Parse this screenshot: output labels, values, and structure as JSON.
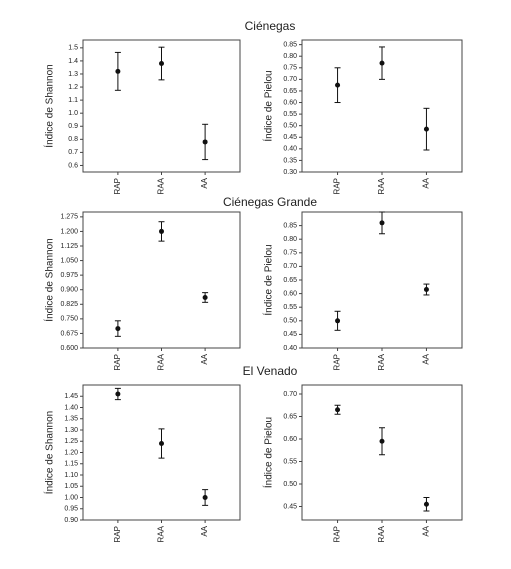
{
  "sections": [
    "Ciénegas",
    "Ciénegas Grande",
    "El Venado"
  ],
  "chart_data": [
    {
      "type": "errorbar",
      "ylabel": "Índice de Shannon",
      "categories": [
        "RAP",
        "RAA",
        "AA"
      ],
      "values": [
        1.32,
        1.38,
        0.78
      ],
      "errors": [
        0.145,
        0.125,
        0.135
      ],
      "color": "#111111",
      "ylim": [
        0.55,
        1.56
      ],
      "yticks": [
        {
          "value": 0.6,
          "label": "0.6"
        },
        0.7,
        0.8,
        0.9,
        {
          "value": 1,
          "label": "1.0"
        },
        1.1,
        1.2,
        1.3,
        1.4,
        1.5
      ]
    },
    {
      "type": "errorbar",
      "ylabel": "Índice de Pielou",
      "categories": [
        "RAP",
        "RAA",
        "AA"
      ],
      "values": [
        0.675,
        0.77,
        0.485
      ],
      "errors": [
        0.075,
        0.07,
        0.09
      ],
      "color": "#111111",
      "ylim": [
        0.3,
        0.87
      ],
      "yticks": [
        {
          "value": 0.3,
          "label": "0.30"
        },
        0.35,
        {
          "value": 0.4,
          "label": "0.40"
        },
        0.45,
        {
          "value": 0.5,
          "label": "0.50"
        },
        0.55,
        {
          "value": 0.6,
          "label": "0.60"
        },
        0.65,
        {
          "value": 0.7,
          "label": "0.70"
        },
        0.75,
        {
          "value": 0.8,
          "label": "0.80"
        },
        0.85
      ]
    },
    {
      "type": "errorbar",
      "ylabel": "Índice de Shannon",
      "categories": [
        "RAP",
        "RAA",
        "AA"
      ],
      "values": [
        0.7,
        1.2,
        0.86
      ],
      "errors": [
        0.04,
        0.05,
        0.025
      ],
      "color": "#111111",
      "ylim": [
        0.6,
        1.3
      ],
      "yticks": [
        {
          "value": 0.6,
          "label": "0.600"
        },
        0.675,
        {
          "value": 0.75,
          "label": "0.750"
        },
        0.825,
        {
          "value": 0.9,
          "label": "0.900"
        },
        0.975,
        {
          "value": 1.05,
          "label": "1.050"
        },
        1.125,
        {
          "value": 1.2,
          "label": "1.200"
        },
        1.275
      ]
    },
    {
      "type": "errorbar",
      "ylabel": "Índice de Pielou",
      "categories": [
        "RAP",
        "RAA",
        "AA"
      ],
      "values": [
        0.5,
        0.86,
        0.615
      ],
      "errors": [
        0.035,
        0.04,
        0.02
      ],
      "color": "#111111",
      "ylim": [
        0.4,
        0.9
      ],
      "yticks": [
        {
          "value": 0.4,
          "label": "0.40"
        },
        0.45,
        {
          "value": 0.5,
          "label": "0.50"
        },
        0.55,
        {
          "value": 0.6,
          "label": "0.60"
        },
        0.65,
        {
          "value": 0.7,
          "label": "0.70"
        },
        0.75,
        {
          "value": 0.8,
          "label": "0.80"
        },
        0.85
      ]
    },
    {
      "type": "errorbar",
      "ylabel": "Índice de Shannon",
      "categories": [
        "RAP",
        "RAA",
        "AA"
      ],
      "values": [
        1.46,
        1.24,
        1.0
      ],
      "errors": [
        0.025,
        0.065,
        0.035
      ],
      "color": "#111111",
      "ylim": [
        0.9,
        1.5
      ],
      "yticks": [
        {
          "value": 0.9,
          "label": "0.90"
        },
        0.95,
        {
          "value": 1,
          "label": "1.00"
        },
        1.05,
        {
          "value": 1.1,
          "label": "1.10"
        },
        1.15,
        {
          "value": 1.2,
          "label": "1.20"
        },
        1.25,
        {
          "value": 1.3,
          "label": "1.30"
        },
        1.35,
        {
          "value": 1.4,
          "label": "1.40"
        },
        1.45
      ]
    },
    {
      "type": "errorbar",
      "ylabel": "Índice de Pielou",
      "categories": [
        "RAP",
        "RAA",
        "AA"
      ],
      "values": [
        0.665,
        0.595,
        0.455
      ],
      "errors": [
        0.01,
        0.03,
        0.015
      ],
      "color": "#111111",
      "ylim": [
        0.42,
        0.72
      ],
      "yticks": [
        0.45,
        {
          "value": 0.5,
          "label": "0.50"
        },
        0.55,
        {
          "value": 0.6,
          "label": "0.60"
        },
        0.65,
        {
          "value": 0.7,
          "label": "0.70"
        }
      ]
    }
  ]
}
